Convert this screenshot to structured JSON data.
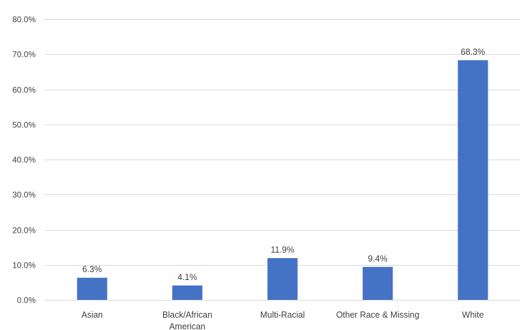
{
  "chart_data": {
    "type": "bar",
    "title": "",
    "xlabel": "",
    "ylabel": "",
    "categories": [
      [
        "Asian"
      ],
      [
        "Black/African",
        "American"
      ],
      [
        "Multi-Racial"
      ],
      [
        "Other Race & Missing"
      ],
      [
        "White"
      ]
    ],
    "values": [
      6.3,
      4.1,
      11.9,
      9.4,
      68.3
    ],
    "data_labels": [
      "6.3%",
      "4.1%",
      "11.9%",
      "9.4%",
      "68.3%"
    ],
    "ylim": [
      0,
      80
    ],
    "yticks": [
      0,
      10,
      20,
      30,
      40,
      50,
      60,
      70,
      80
    ],
    "ytick_labels": [
      "0.0%",
      "10.0%",
      "20.0%",
      "30.0%",
      "40.0%",
      "50.0%",
      "60.0%",
      "70.0%",
      "80.0%"
    ],
    "grid": true,
    "legend": "none",
    "colors": {
      "bar": "#4472C4",
      "grid": "#D9D9D9",
      "text": "#404040"
    }
  }
}
